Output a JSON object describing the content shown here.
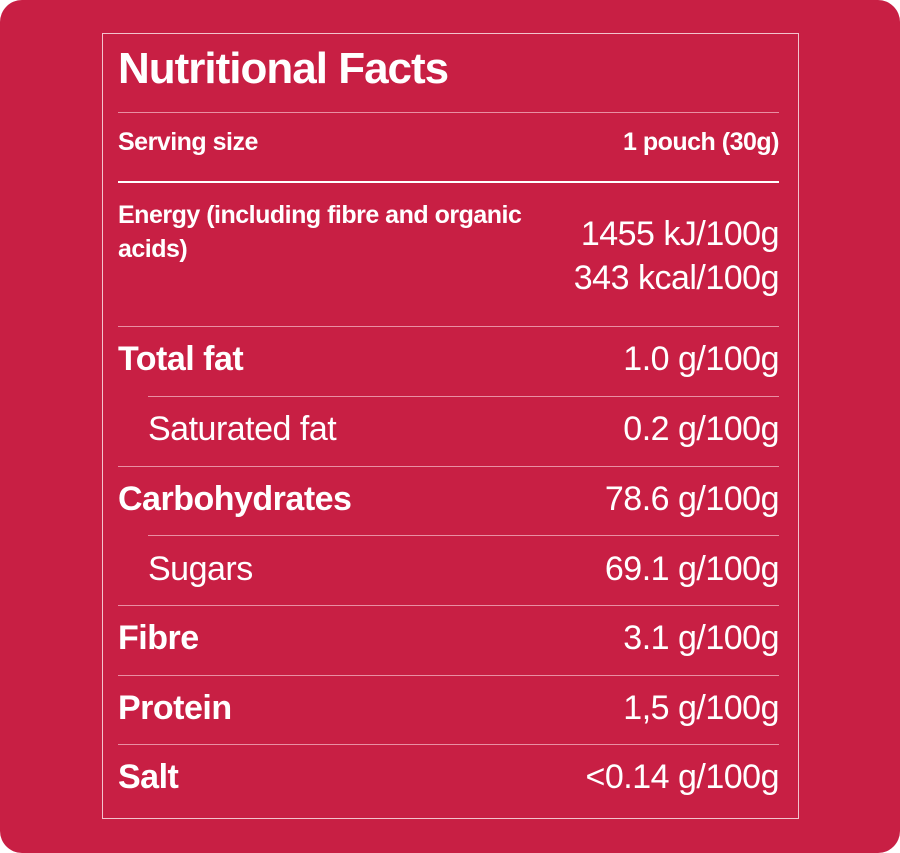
{
  "title": "Nutritional Facts",
  "serving": {
    "label": "Serving size",
    "value": "1 pouch (30g)"
  },
  "energy": {
    "label": "Energy (including fibre and organic acids)",
    "kj": "1455 kJ/100g",
    "kcal": "343 kcal/100g"
  },
  "rows": [
    {
      "label": "Total fat",
      "value": "1.0 g/100g"
    },
    {
      "label": "Saturated fat",
      "value": "0.2 g/100g"
    },
    {
      "label": "Carbohydrates",
      "value": "78.6 g/100g"
    },
    {
      "label": "Sugars",
      "value": "69.1 g/100g"
    },
    {
      "label": "Fibre",
      "value": "3.1 g/100g"
    },
    {
      "label": "Protein",
      "value": "1,5 g/100g"
    },
    {
      "label": "Salt",
      "value": "<0.14 g/100g"
    }
  ],
  "colors": {
    "background": "#c81f44",
    "text": "#ffffff"
  }
}
